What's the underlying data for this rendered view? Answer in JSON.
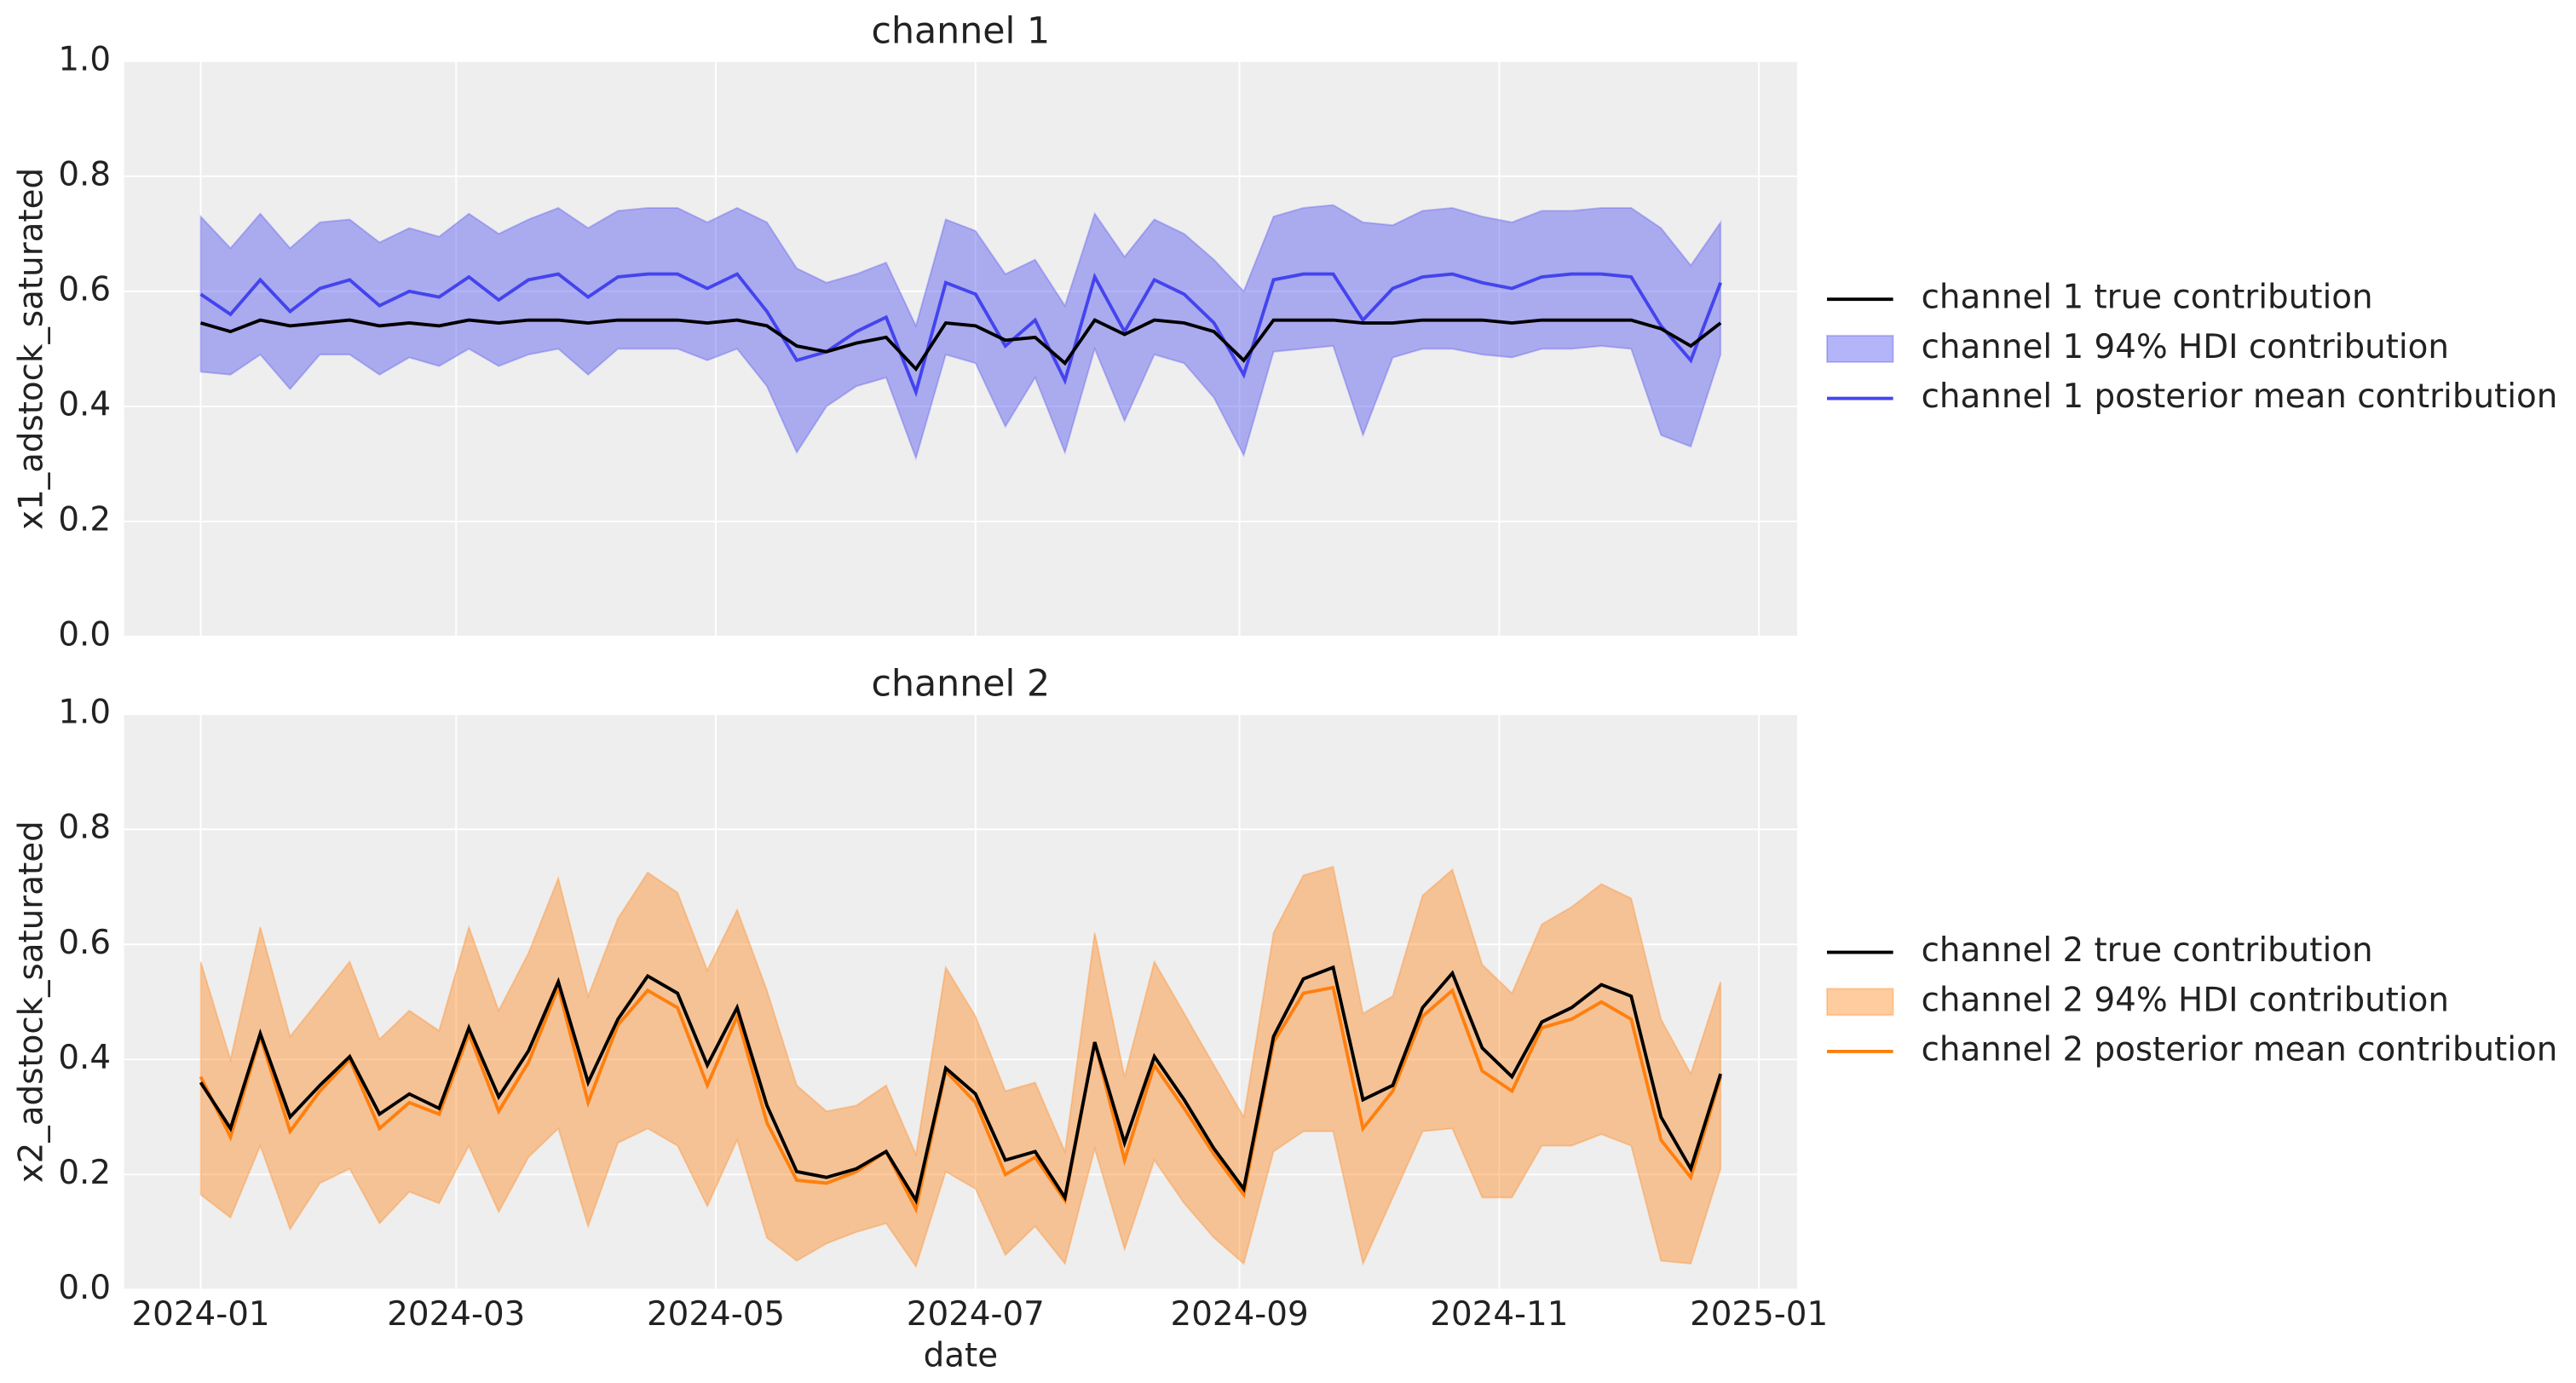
{
  "chart_data": [
    {
      "type": "line",
      "title": "channel 1",
      "ylabel": "x1_adstock_saturated",
      "x": [
        0,
        7,
        14,
        21,
        28,
        35,
        42,
        49,
        56,
        63,
        70,
        77,
        84,
        91,
        98,
        105,
        112,
        119,
        126,
        133,
        140,
        147,
        154,
        161,
        168,
        175,
        182,
        189,
        196,
        203,
        210,
        217,
        224,
        231,
        238,
        245,
        252,
        259,
        266,
        273,
        280,
        287,
        294,
        301,
        308,
        315,
        322,
        329,
        336,
        343,
        350,
        357
      ],
      "xlim": [
        -18,
        375
      ],
      "ylim": [
        0,
        1
      ],
      "yticks": [
        {
          "value": 0,
          "label": "0.0"
        },
        0.2,
        0.4,
        0.6,
        0.8,
        {
          "value": 1,
          "label": "1.0"
        }
      ],
      "grid": true,
      "series": [
        {
          "name": "channel 1 true contribution",
          "color": "#000000",
          "values": [
            0.545,
            0.53,
            0.55,
            0.54,
            0.545,
            0.55,
            0.54,
            0.545,
            0.54,
            0.55,
            0.545,
            0.55,
            0.55,
            0.545,
            0.55,
            0.55,
            0.55,
            0.545,
            0.55,
            0.54,
            0.505,
            0.495,
            0.51,
            0.52,
            0.465,
            0.545,
            0.54,
            0.515,
            0.52,
            0.475,
            0.55,
            0.525,
            0.55,
            0.545,
            0.53,
            0.48,
            0.55,
            0.55,
            0.55,
            0.545,
            0.545,
            0.55,
            0.55,
            0.55,
            0.545,
            0.55,
            0.55,
            0.55,
            0.55,
            0.535,
            0.505,
            0.545
          ]
        },
        {
          "name": "channel 1 94% HDI contribution",
          "color": "#4444ee",
          "kind": "band",
          "lower": [
            0.46,
            0.455,
            0.49,
            0.43,
            0.49,
            0.49,
            0.455,
            0.485,
            0.47,
            0.5,
            0.47,
            0.49,
            0.5,
            0.455,
            0.5,
            0.5,
            0.5,
            0.48,
            0.5,
            0.435,
            0.32,
            0.4,
            0.435,
            0.45,
            0.31,
            0.49,
            0.475,
            0.365,
            0.45,
            0.32,
            0.5,
            0.375,
            0.49,
            0.475,
            0.415,
            0.315,
            0.495,
            0.5,
            0.505,
            0.35,
            0.485,
            0.5,
            0.5,
            0.49,
            0.485,
            0.5,
            0.5,
            0.505,
            0.5,
            0.35,
            0.33,
            0.49
          ],
          "upper": [
            0.73,
            0.675,
            0.735,
            0.675,
            0.72,
            0.725,
            0.685,
            0.71,
            0.695,
            0.735,
            0.7,
            0.725,
            0.745,
            0.71,
            0.74,
            0.745,
            0.745,
            0.72,
            0.745,
            0.72,
            0.64,
            0.615,
            0.63,
            0.65,
            0.54,
            0.725,
            0.705,
            0.63,
            0.655,
            0.575,
            0.735,
            0.66,
            0.725,
            0.7,
            0.655,
            0.6,
            0.73,
            0.745,
            0.75,
            0.72,
            0.715,
            0.74,
            0.745,
            0.73,
            0.72,
            0.74,
            0.74,
            0.745,
            0.745,
            0.71,
            0.645,
            0.72
          ]
        },
        {
          "name": "channel 1 posterior mean contribution",
          "color": "#4444ee",
          "values": [
            0.595,
            0.56,
            0.62,
            0.565,
            0.605,
            0.62,
            0.575,
            0.6,
            0.59,
            0.625,
            0.585,
            0.62,
            0.63,
            0.59,
            0.625,
            0.63,
            0.63,
            0.605,
            0.63,
            0.565,
            0.48,
            0.495,
            0.53,
            0.555,
            0.425,
            0.615,
            0.595,
            0.505,
            0.55,
            0.445,
            0.625,
            0.53,
            0.62,
            0.595,
            0.545,
            0.455,
            0.62,
            0.63,
            0.63,
            0.55,
            0.605,
            0.625,
            0.63,
            0.615,
            0.605,
            0.625,
            0.63,
            0.63,
            0.625,
            0.54,
            0.48,
            0.615
          ]
        }
      ]
    },
    {
      "type": "line",
      "title": "channel 2",
      "ylabel": "x2_adstock_saturated",
      "xlabel": "date",
      "x": [
        0,
        7,
        14,
        21,
        28,
        35,
        42,
        49,
        56,
        63,
        70,
        77,
        84,
        91,
        98,
        105,
        112,
        119,
        126,
        133,
        140,
        147,
        154,
        161,
        168,
        175,
        182,
        189,
        196,
        203,
        210,
        217,
        224,
        231,
        238,
        245,
        252,
        259,
        266,
        273,
        280,
        287,
        294,
        301,
        308,
        315,
        322,
        329,
        336,
        343,
        350,
        357
      ],
      "xlim": [
        -18,
        375
      ],
      "ylim": [
        0,
        1
      ],
      "xticks": [
        {
          "value": 0,
          "label": "2024-01"
        },
        {
          "value": 60,
          "label": "2024-03"
        },
        {
          "value": 121,
          "label": "2024-05"
        },
        {
          "value": 182,
          "label": "2024-07"
        },
        {
          "value": 244,
          "label": "2024-09"
        },
        {
          "value": 305,
          "label": "2024-11"
        },
        {
          "value": 366,
          "label": "2025-01"
        }
      ],
      "yticks": [
        {
          "value": 0,
          "label": "0.0"
        },
        0.2,
        0.4,
        0.6,
        0.8,
        {
          "value": 1,
          "label": "1.0"
        }
      ],
      "grid": true,
      "series": [
        {
          "name": "channel 2 true contribution",
          "color": "#000000",
          "values": [
            0.36,
            0.28,
            0.445,
            0.3,
            0.355,
            0.405,
            0.305,
            0.34,
            0.315,
            0.455,
            0.335,
            0.415,
            0.535,
            0.36,
            0.47,
            0.545,
            0.515,
            0.39,
            0.49,
            0.32,
            0.205,
            0.195,
            0.21,
            0.24,
            0.155,
            0.385,
            0.34,
            0.225,
            0.24,
            0.16,
            0.43,
            0.255,
            0.405,
            0.33,
            0.245,
            0.175,
            0.44,
            0.54,
            0.56,
            0.33,
            0.355,
            0.49,
            0.55,
            0.42,
            0.37,
            0.465,
            0.49,
            0.53,
            0.51,
            0.3,
            0.21,
            0.375
          ]
        },
        {
          "name": "channel 2 94% HDI contribution",
          "color": "#ff7f0e",
          "kind": "band",
          "lower": [
            0.165,
            0.125,
            0.25,
            0.105,
            0.185,
            0.21,
            0.115,
            0.17,
            0.15,
            0.25,
            0.135,
            0.23,
            0.28,
            0.11,
            0.255,
            0.28,
            0.25,
            0.145,
            0.26,
            0.09,
            0.05,
            0.08,
            0.1,
            0.115,
            0.04,
            0.205,
            0.175,
            0.06,
            0.11,
            0.045,
            0.245,
            0.07,
            0.225,
            0.15,
            0.09,
            0.045,
            0.24,
            0.275,
            0.275,
            0.045,
            0.16,
            0.275,
            0.28,
            0.16,
            0.16,
            0.25,
            0.25,
            0.27,
            0.25,
            0.05,
            0.045,
            0.21
          ],
          "upper": [
            0.57,
            0.4,
            0.63,
            0.44,
            0.505,
            0.57,
            0.435,
            0.485,
            0.45,
            0.63,
            0.485,
            0.585,
            0.715,
            0.51,
            0.645,
            0.725,
            0.69,
            0.555,
            0.66,
            0.52,
            0.355,
            0.31,
            0.32,
            0.355,
            0.235,
            0.56,
            0.475,
            0.345,
            0.36,
            0.24,
            0.62,
            0.37,
            0.57,
            0.48,
            0.39,
            0.3,
            0.62,
            0.72,
            0.735,
            0.48,
            0.51,
            0.685,
            0.73,
            0.565,
            0.515,
            0.635,
            0.665,
            0.705,
            0.68,
            0.47,
            0.375,
            0.535
          ]
        },
        {
          "name": "channel 2 posterior mean contribution",
          "color": "#ff7f0e",
          "values": [
            0.37,
            0.265,
            0.44,
            0.275,
            0.345,
            0.4,
            0.28,
            0.325,
            0.305,
            0.445,
            0.31,
            0.395,
            0.525,
            0.325,
            0.46,
            0.52,
            0.49,
            0.355,
            0.475,
            0.29,
            0.19,
            0.185,
            0.205,
            0.24,
            0.14,
            0.38,
            0.325,
            0.2,
            0.23,
            0.155,
            0.43,
            0.225,
            0.39,
            0.315,
            0.235,
            0.165,
            0.43,
            0.515,
            0.525,
            0.28,
            0.345,
            0.475,
            0.52,
            0.38,
            0.345,
            0.455,
            0.47,
            0.5,
            0.47,
            0.26,
            0.195,
            0.37
          ]
        }
      ]
    }
  ]
}
